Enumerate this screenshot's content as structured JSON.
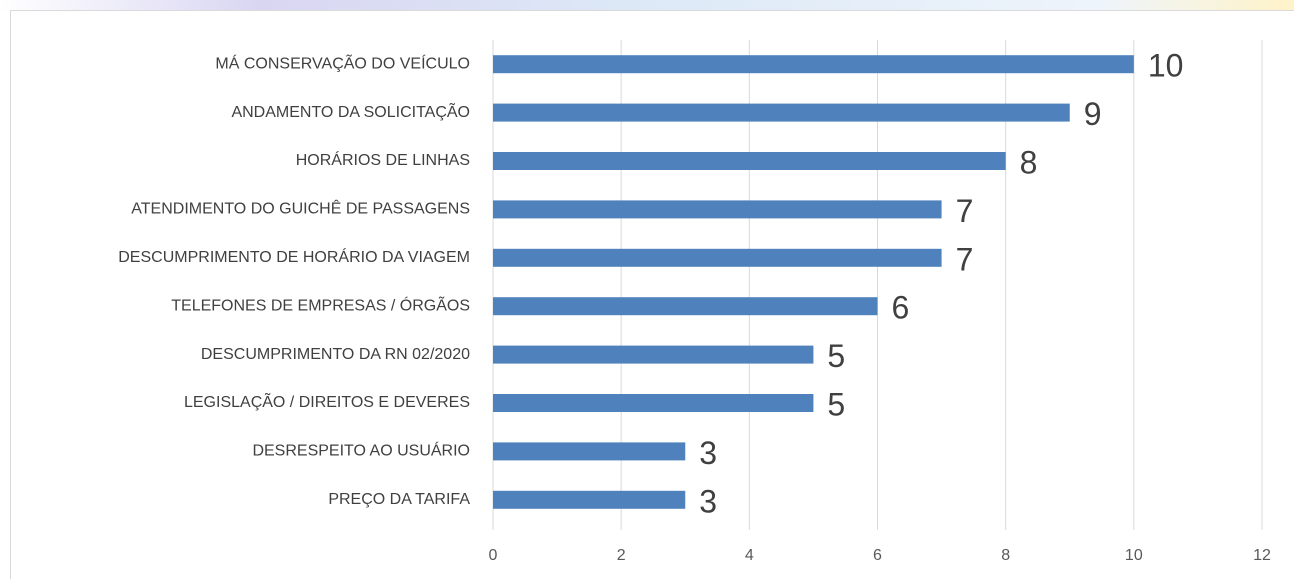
{
  "chart_data": {
    "type": "bar",
    "orientation": "horizontal",
    "categories": [
      "MÁ CONSERVAÇÃO DO VEÍCULO",
      "ANDAMENTO DA SOLICITAÇÃO",
      "HORÁRIOS DE LINHAS",
      "ATENDIMENTO DO GUICHÊ DE PASSAGENS",
      "DESCUMPRIMENTO DE HORÁRIO DA VIAGEM",
      "TELEFONES DE EMPRESAS / ÓRGÃOS",
      "DESCUMPRIMENTO DA RN 02/2020",
      "LEGISLAÇÃO / DIREITOS E DEVERES",
      "DESRESPEITO AO USUÁRIO",
      "PREÇO DA TARIFA"
    ],
    "values": [
      10,
      9,
      8,
      7,
      7,
      6,
      5,
      5,
      3,
      3
    ],
    "color": "#4f81bd",
    "xlim": [
      0,
      12
    ],
    "xticks": [
      0,
      2,
      4,
      6,
      8,
      10,
      12
    ],
    "grid": true,
    "data_labels": true
  }
}
